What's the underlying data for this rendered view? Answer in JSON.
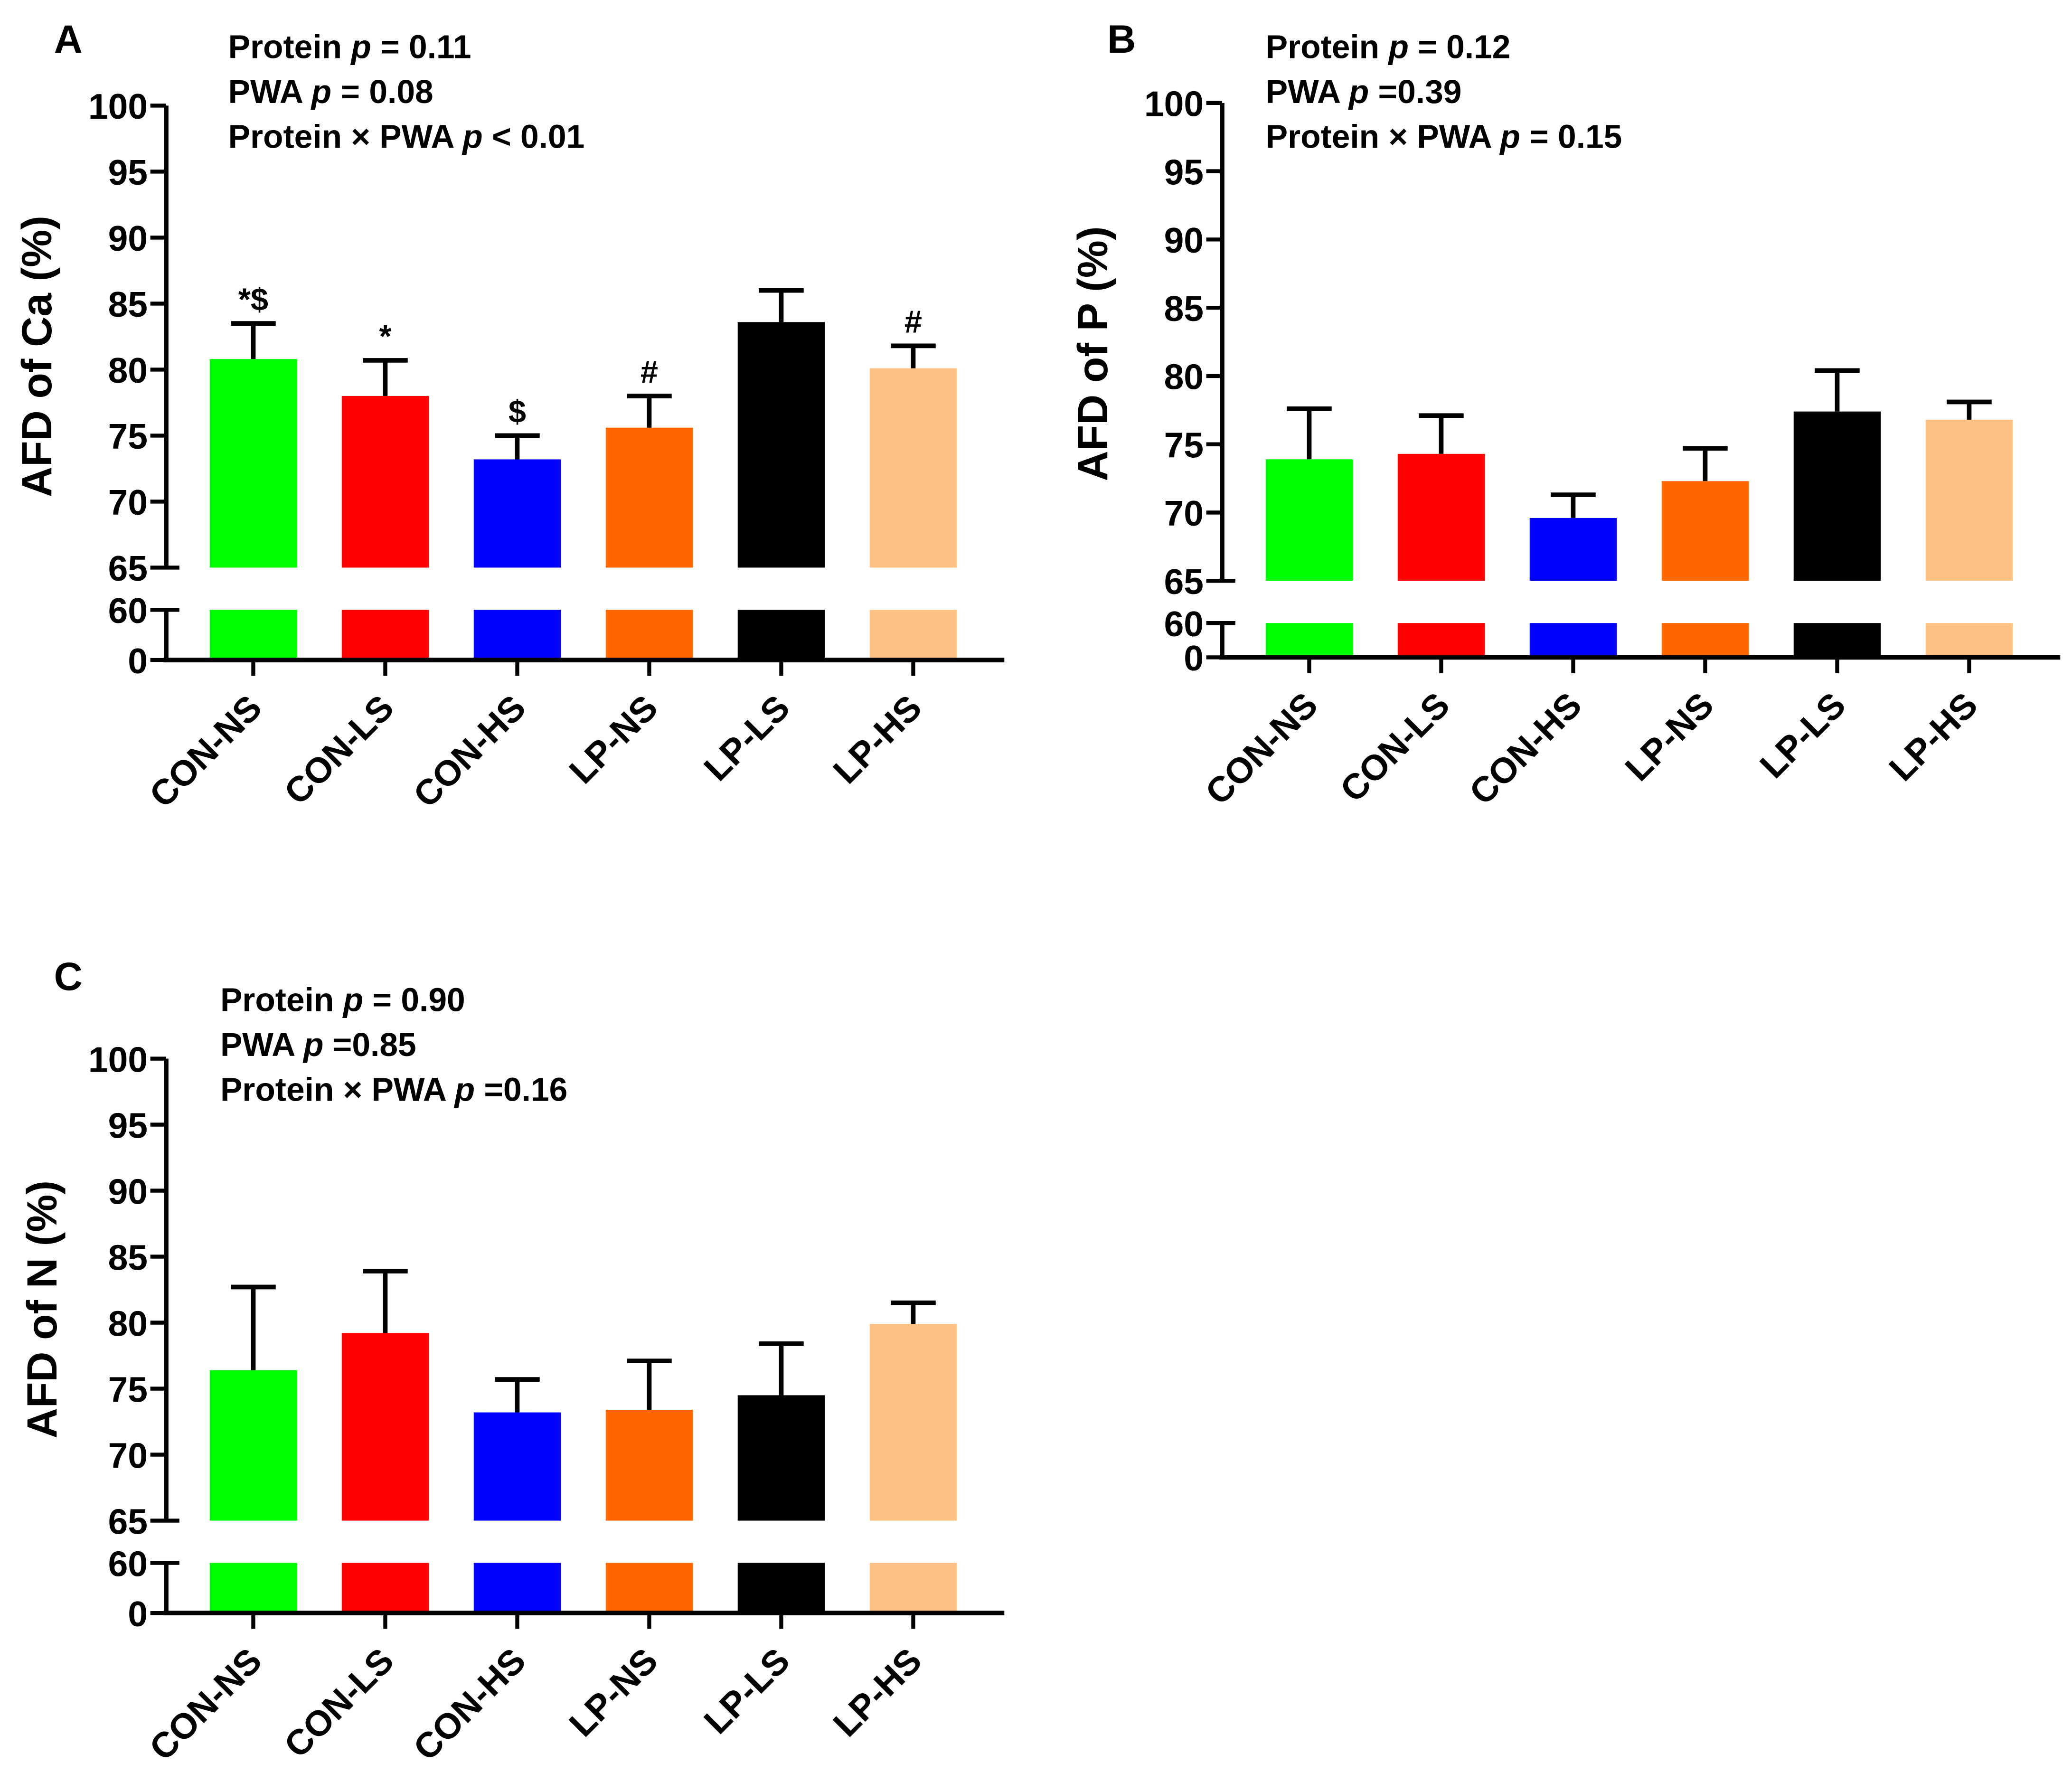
{
  "chart_data": [
    {
      "type": "bar",
      "panel": "A",
      "ylabel": "AFD of Ca (%)",
      "categories": [
        "CON-NS",
        "CON-LS",
        "CON-HS",
        "LP-NS",
        "LP-LS",
        "LP-HS"
      ],
      "values": [
        80.8,
        78.0,
        73.2,
        75.6,
        83.6,
        80.1
      ],
      "error_upper": [
        83.5,
        80.7,
        75.0,
        78.0,
        86.0,
        81.8
      ],
      "annotations": [
        "*$",
        "*",
        "$",
        "#",
        "",
        "#"
      ],
      "stats": [
        [
          "Protein ",
          "p",
          " = 0.11"
        ],
        [
          "PWA ",
          "p",
          " = 0.08"
        ],
        [
          "Protein × PWA ",
          "p",
          " < 0.01"
        ]
      ],
      "yticks_upper": [
        65,
        70,
        75,
        80,
        85,
        90,
        95,
        100
      ],
      "yticks_lower": [
        0,
        60
      ],
      "ylim": [
        0,
        100
      ],
      "axis_break": [
        60,
        65
      ]
    },
    {
      "type": "bar",
      "panel": "B",
      "ylabel": "AFD of P (%)",
      "categories": [
        "CON-NS",
        "CON-LS",
        "CON-HS",
        "LP-NS",
        "LP-LS",
        "LP-HS"
      ],
      "values": [
        73.9,
        74.3,
        69.6,
        72.3,
        77.4,
        76.8
      ],
      "error_upper": [
        77.6,
        77.1,
        71.3,
        74.7,
        80.4,
        78.1
      ],
      "annotations": [
        "",
        "",
        "",
        "",
        "",
        ""
      ],
      "stats": [
        [
          "Protein ",
          "p",
          " = 0.12"
        ],
        [
          "PWA ",
          "p",
          " =0.39"
        ],
        [
          "Protein × PWA ",
          "p",
          " = 0.15"
        ]
      ],
      "yticks_upper": [
        65,
        70,
        75,
        80,
        85,
        90,
        95,
        100
      ],
      "yticks_lower": [
        0,
        60
      ],
      "ylim": [
        0,
        100
      ],
      "axis_break": [
        60,
        65
      ]
    },
    {
      "type": "bar",
      "panel": "C",
      "ylabel": "AFD of N (%)",
      "categories": [
        "CON-NS",
        "CON-LS",
        "CON-HS",
        "LP-NS",
        "LP-LS",
        "LP-HS"
      ],
      "values": [
        76.4,
        79.2,
        73.2,
        73.4,
        74.5,
        79.9
      ],
      "error_upper": [
        82.7,
        83.9,
        75.7,
        77.1,
        78.4,
        81.5
      ],
      "annotations": [
        "",
        "",
        "",
        "",
        "",
        ""
      ],
      "stats": [
        [
          "Protein ",
          "p",
          " = 0.90"
        ],
        [
          "PWA ",
          "p",
          " =0.85"
        ],
        [
          "Protein × PWA ",
          "p",
          " =0.16"
        ]
      ],
      "yticks_upper": [
        65,
        70,
        75,
        80,
        85,
        90,
        95,
        100
      ],
      "yticks_lower": [
        0,
        60
      ],
      "ylim": [
        0,
        100
      ],
      "axis_break": [
        60,
        65
      ]
    }
  ],
  "colors": [
    "#00ff00",
    "#ff0000",
    "#0000ff",
    "#ff6600",
    "#000000",
    "#ffc285"
  ]
}
